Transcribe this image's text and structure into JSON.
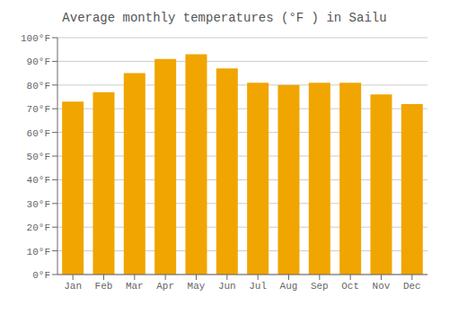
{
  "chart_data": {
    "type": "bar",
    "title": "Average monthly temperatures (°F ) in Sailu",
    "categories": [
      "Jan",
      "Feb",
      "Mar",
      "Apr",
      "May",
      "Jun",
      "Jul",
      "Aug",
      "Sep",
      "Oct",
      "Nov",
      "Dec"
    ],
    "values": [
      73,
      77,
      85,
      91,
      93,
      87,
      81,
      80,
      81,
      81,
      76,
      72
    ],
    "color": "#F0A500",
    "ylim": [
      0,
      100
    ],
    "yticks": [
      {
        "value": 0,
        "label": "0°F"
      },
      {
        "value": 10,
        "label": "10°F"
      },
      {
        "value": 20,
        "label": "20°F"
      },
      {
        "value": 30,
        "label": "30°F"
      },
      {
        "value": 40,
        "label": "40°F"
      },
      {
        "value": 50,
        "label": "50°F"
      },
      {
        "value": 60,
        "label": "60°F"
      },
      {
        "value": 70,
        "label": "70°F"
      },
      {
        "value": 80,
        "label": "80°F"
      },
      {
        "value": 90,
        "label": "90°F"
      },
      {
        "value": 100,
        "label": "100°F"
      }
    ],
    "grid": true
  }
}
